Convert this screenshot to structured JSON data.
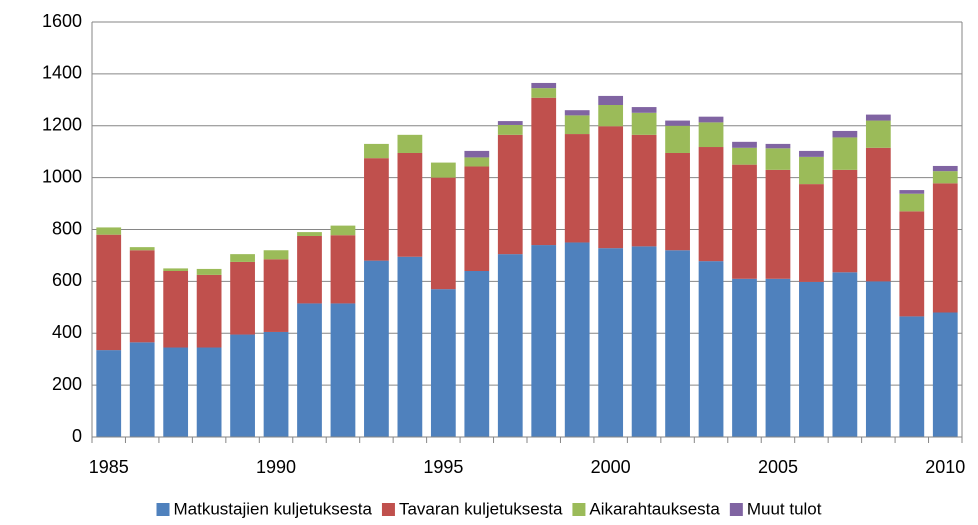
{
  "chart_data": {
    "type": "stacked_bar",
    "categories": [
      "1985",
      null,
      null,
      null,
      null,
      "1990",
      null,
      null,
      null,
      null,
      "1995",
      null,
      null,
      null,
      null,
      "2000",
      null,
      null,
      null,
      null,
      "2005",
      null,
      null,
      null,
      null,
      "2010"
    ],
    "series": [
      {
        "name": "Matkustajien kuljetuksesta",
        "color": "#4f81bd",
        "values": [
          335,
          365,
          345,
          345,
          395,
          405,
          515,
          515,
          680,
          695,
          570,
          640,
          705,
          740,
          750,
          728,
          735,
          720,
          678,
          610,
          610,
          598,
          635,
          600,
          465,
          480
        ]
      },
      {
        "name": "Tavaran kuljetuksesta",
        "color": "#c0504d",
        "values": [
          445,
          355,
          295,
          280,
          280,
          280,
          260,
          263,
          395,
          400,
          430,
          403,
          460,
          568,
          418,
          470,
          430,
          375,
          440,
          440,
          420,
          377,
          395,
          515,
          405,
          498
        ]
      },
      {
        "name": "Aikarahtauksesta",
        "color": "#9bbb59",
        "values": [
          28,
          12,
          10,
          23,
          30,
          35,
          15,
          37,
          55,
          70,
          58,
          35,
          38,
          37,
          72,
          82,
          85,
          105,
          95,
          65,
          83,
          105,
          125,
          105,
          68,
          47
        ]
      },
      {
        "name": "Muut tulot",
        "color": "#8064a2",
        "values": [
          0,
          0,
          0,
          0,
          0,
          0,
          0,
          0,
          0,
          0,
          0,
          25,
          15,
          20,
          20,
          35,
          22,
          20,
          22,
          23,
          17,
          23,
          25,
          23,
          14,
          20
        ]
      }
    ],
    "ylim": [
      0,
      1600
    ],
    "yticks": [
      0,
      200,
      400,
      600,
      800,
      1000,
      1200,
      1400,
      1600
    ],
    "grid": true,
    "legend": "bottom"
  }
}
